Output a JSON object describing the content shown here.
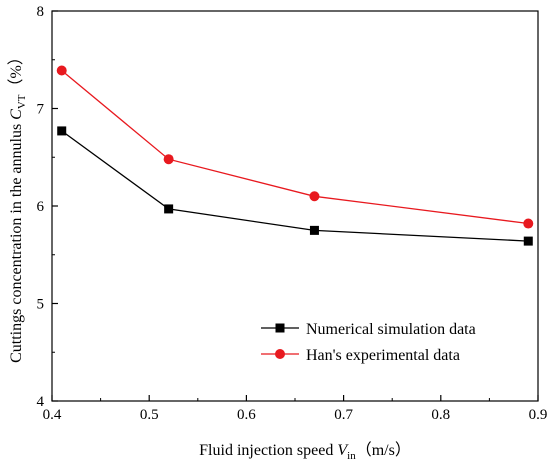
{
  "chart_data": {
    "type": "line",
    "xlabel": {
      "main": "Fluid injection speed ",
      "var": "V",
      "sub": "in",
      "unit": "（m/s）"
    },
    "ylabel": {
      "main": "Cuttings concentration in the annulus ",
      "var": "C",
      "sub": "VT",
      "unit": "（%）"
    },
    "xlim": [
      0.4,
      0.9
    ],
    "ylim": [
      4,
      8
    ],
    "xticks": [
      0.4,
      0.5,
      0.6,
      0.7,
      0.8,
      0.9
    ],
    "xtick_labels": [
      "0.4",
      "0.5",
      "0.6",
      "0.7",
      "0.8",
      "0.9"
    ],
    "yticks": [
      4,
      5,
      6,
      7,
      8
    ],
    "ytick_labels": [
      "4",
      "5",
      "6",
      "7",
      "8"
    ],
    "grid": false,
    "legend_position": "bottom-right",
    "series": [
      {
        "name": "Numerical simulation data",
        "color": "#000000",
        "marker": "square",
        "x": [
          0.41,
          0.52,
          0.67,
          0.89
        ],
        "y": [
          6.77,
          5.97,
          5.75,
          5.64
        ]
      },
      {
        "name": "Han's experimental data",
        "color": "#e8191f",
        "marker": "circle",
        "x": [
          0.41,
          0.52,
          0.67,
          0.89
        ],
        "y": [
          7.39,
          6.48,
          6.1,
          5.82
        ]
      }
    ]
  }
}
